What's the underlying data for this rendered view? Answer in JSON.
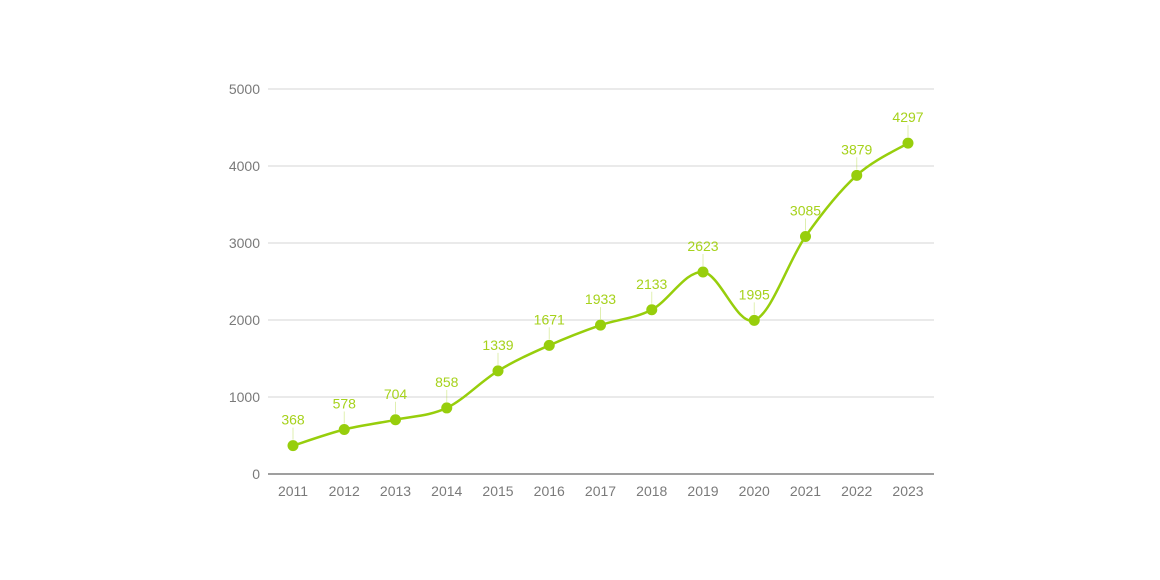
{
  "chart_data": {
    "type": "line",
    "smooth": true,
    "title": "",
    "xlabel": "",
    "ylabel": "",
    "categories": [
      "2011",
      "2012",
      "2013",
      "2014",
      "2015",
      "2016",
      "2017",
      "2018",
      "2019",
      "2020",
      "2021",
      "2022",
      "2023"
    ],
    "series": [
      {
        "values": [
          368,
          578,
          704,
          858,
          1339,
          1671,
          1933,
          2133,
          2623,
          1995,
          3085,
          3879,
          4297
        ]
      }
    ],
    "data_labels": [
      "368",
      "578",
      "704",
      "858",
      "1339",
      "1671",
      "1933",
      "2133",
      "2623",
      "1995",
      "3085",
      "3879",
      "4297"
    ],
    "ylim": [
      0,
      5000
    ],
    "yticks": [
      0,
      1000,
      2000,
      3000,
      4000,
      5000
    ],
    "ytick_labels": [
      "0",
      "1000",
      "2000",
      "3000",
      "4000",
      "5000"
    ],
    "grid": true,
    "legend": "none",
    "colors": {
      "series": "#97ce0c",
      "data_label": "#a6d21c",
      "grid": "#d4d4d4",
      "axis": "#666666",
      "tick_label": "#7a7a7a"
    }
  }
}
